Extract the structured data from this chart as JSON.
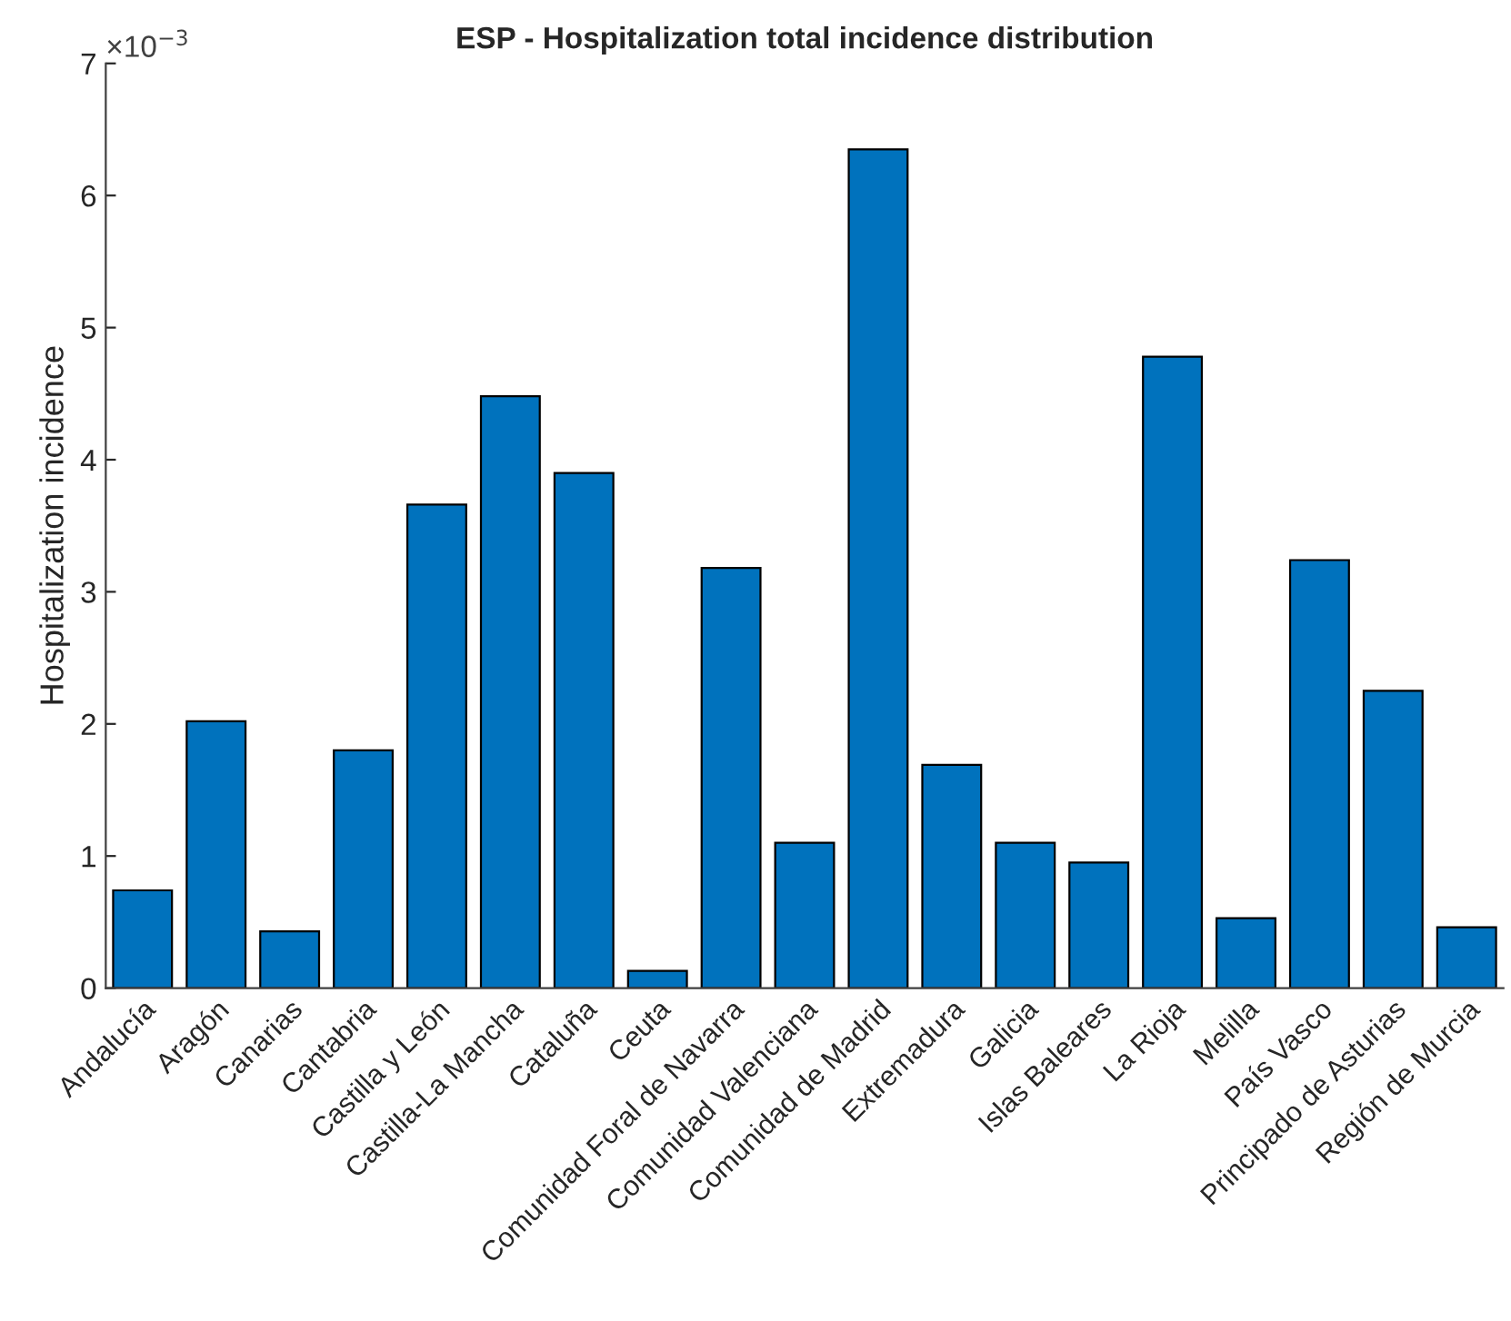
{
  "chart_data": {
    "type": "bar",
    "title": "ESP - Hospitalization total incidence distribution",
    "ylabel": "Hospitalization incidence",
    "categories": [
      "Andalucía",
      "Aragón",
      "Canarias",
      "Cantabria",
      "Castilla y León",
      "Castilla-La Mancha",
      "Cataluña",
      "Ceuta",
      "Comunidad Foral de Navarra",
      "Comunidad Valenciana",
      "Comunidad de Madrid",
      "Extremadura",
      "Galicia",
      "Islas Baleares",
      "La Rioja",
      "Melilla",
      "País Vasco",
      "Principado de Asturias",
      "Región de Murcia"
    ],
    "values": [
      0.74,
      2.02,
      0.43,
      1.8,
      3.66,
      4.48,
      3.9,
      0.13,
      3.18,
      1.1,
      6.35,
      1.69,
      1.1,
      0.95,
      4.78,
      0.53,
      3.24,
      2.25,
      0.46
    ],
    "color": "#0072bd",
    "ylim": [
      0,
      7
    ],
    "yticks": [
      0,
      1,
      2,
      3,
      4,
      5,
      6,
      7
    ],
    "annotations": [
      "×10$^{−3}$"
    ],
    "grid": false
  }
}
